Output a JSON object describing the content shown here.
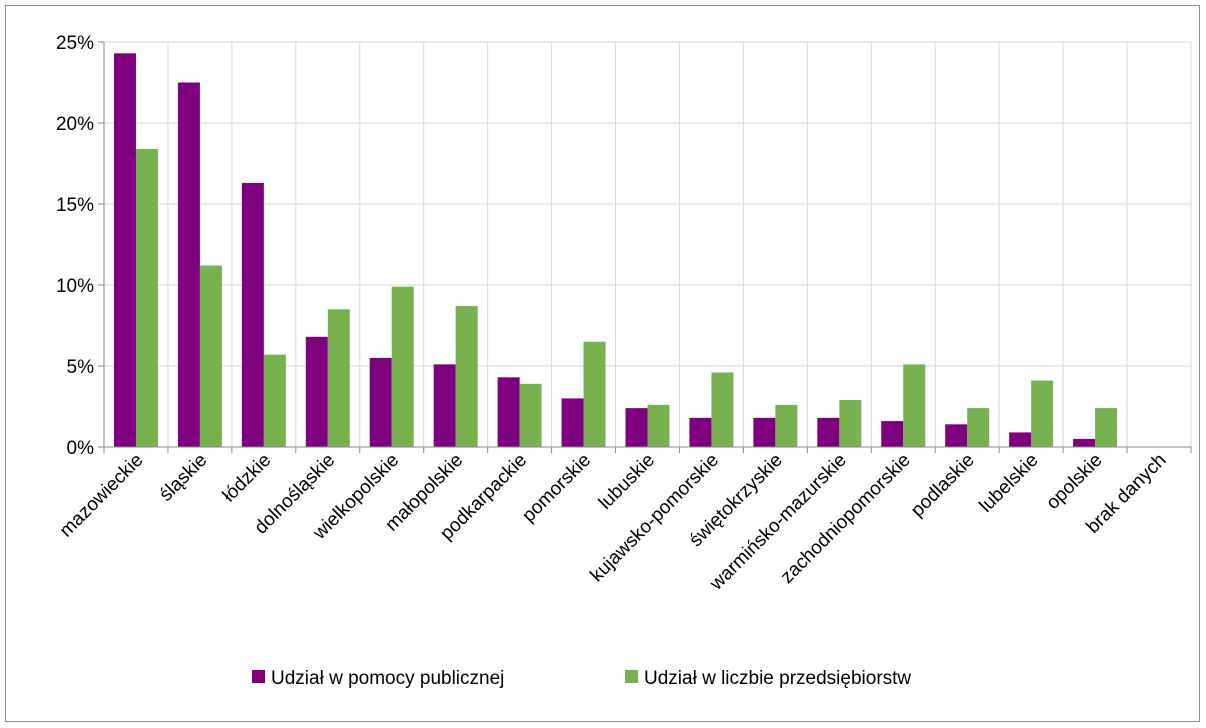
{
  "chart_data": {
    "type": "bar",
    "title": "",
    "xlabel": "",
    "ylabel": "",
    "ylim": [
      0,
      25
    ],
    "yticks": [
      "0%",
      "5%",
      "10%",
      "15%",
      "20%",
      "25%"
    ],
    "grid": true,
    "legend_position": "bottom",
    "categories": [
      "mazowieckie",
      "śląskie",
      "łódzkie",
      "dolnośląskie",
      "wielkopolskie",
      "małopolskie",
      "podkarpackie",
      "pomorskie",
      "lubuskie",
      "kujawsko-pomorskie",
      "świętokrzyskie",
      "warmińsko-mazurskie",
      "zachodniopomorskie",
      "podlaskie",
      "lubelskie",
      "opolskie",
      "brak danych"
    ],
    "series": [
      {
        "name": "Udział w pomocy publicznej",
        "color": "#7f007f",
        "values": [
          24.3,
          22.5,
          16.3,
          6.8,
          5.5,
          5.1,
          4.3,
          3.0,
          2.4,
          1.8,
          1.8,
          1.8,
          1.6,
          1.4,
          0.9,
          0.5,
          0
        ]
      },
      {
        "name": "Udział w liczbie przedsiębiorstw",
        "color": "#77b150",
        "values": [
          18.4,
          11.2,
          5.7,
          8.5,
          9.9,
          8.7,
          3.9,
          6.5,
          2.6,
          4.6,
          2.6,
          2.9,
          5.1,
          2.4,
          4.1,
          2.4,
          0
        ]
      }
    ]
  }
}
